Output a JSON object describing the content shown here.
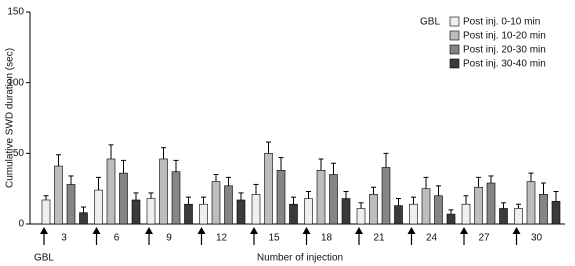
{
  "chart_data": {
    "type": "bar",
    "y_label": "Cumulative SWD duration (sec)",
    "x_label": "Number of injection",
    "legend_title": "GBL",
    "arrow_label": "GBL",
    "categories": [
      "3",
      "6",
      "9",
      "12",
      "15",
      "18",
      "21",
      "24",
      "27",
      "30"
    ],
    "series": [
      {
        "name": "Post inj. 0-10 min",
        "color": "#efefef",
        "values": [
          17,
          24,
          18,
          14,
          21,
          18,
          11,
          14,
          14,
          11
        ],
        "errors": [
          3,
          9,
          4,
          5,
          7,
          5,
          4,
          5,
          6,
          3
        ]
      },
      {
        "name": "Post inj. 10-20 min",
        "color": "#bdbdbd",
        "values": [
          41,
          46,
          46,
          30,
          50,
          38,
          21,
          25,
          26,
          30
        ],
        "errors": [
          8,
          10,
          8,
          5,
          8,
          8,
          5,
          8,
          7,
          6
        ]
      },
      {
        "name": "Post inj. 20-30 min",
        "color": "#858585",
        "values": [
          28,
          36,
          37,
          27,
          38,
          35,
          40,
          20,
          29,
          21
        ],
        "errors": [
          6,
          9,
          8,
          6,
          9,
          8,
          10,
          7,
          5,
          8
        ]
      },
      {
        "name": "Post inj. 30-40 min",
        "color": "#3a3a3a",
        "values": [
          8,
          17,
          14,
          17,
          14,
          18,
          13,
          7,
          11,
          16
        ],
        "errors": [
          4,
          5,
          5,
          5,
          5,
          5,
          5,
          3,
          4,
          7
        ]
      }
    ],
    "ylim": [
      0,
      150
    ],
    "yticks": [
      0,
      50,
      100,
      150
    ],
    "grid": false
  }
}
